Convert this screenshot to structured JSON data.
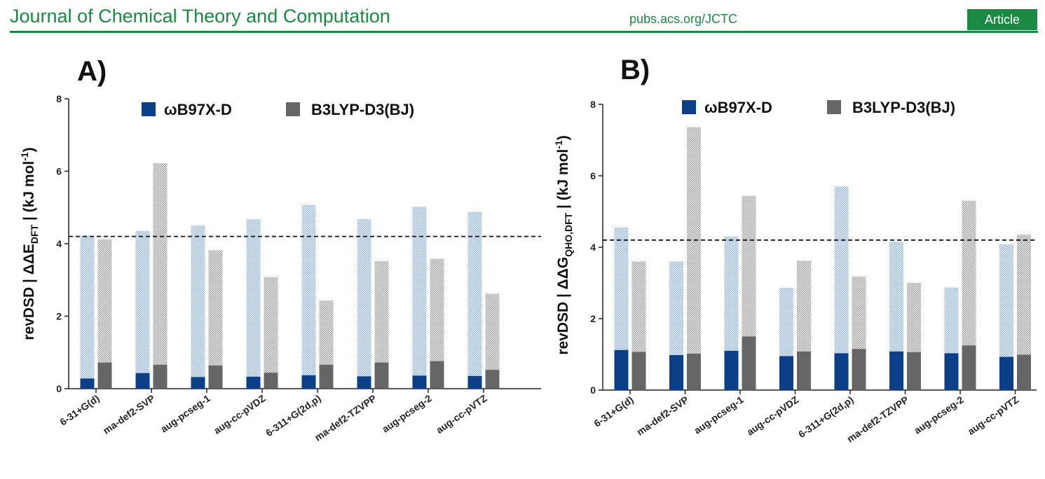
{
  "header": {
    "journal": "Journal of Chemical Theory and Computation",
    "url": "pubs.acs.org/JCTC",
    "badge": "Article"
  },
  "colors": {
    "brand_green": "#1a8a43",
    "wb97xd": "#0b3f87",
    "wb97xd_light": "#a8c3e2",
    "b3lyp": "#666666",
    "b3lyp_light": "#c9c9c9"
  },
  "chart_data": [
    {
      "type": "bar",
      "panel_label": "A)",
      "ylabel": "revDSD |ΔΔE_DFT| (kJ mol^-1)",
      "ylabel_parts": {
        "pre": "revDSD ",
        "delta": "ΔΔE",
        "sub": "DFT",
        "unit": " (kJ mol",
        "sup": "-1",
        "close": ")"
      },
      "ylim": [
        0,
        8
      ],
      "yticks": [
        "0",
        "2",
        "4",
        "6",
        "8"
      ],
      "reference_line": 4.2,
      "categories": [
        "6-31+G(d)",
        "ma-def2-SVP",
        "aug-pcseg-1",
        "aug-cc-pVDZ",
        "6-311+G(2d,p)",
        "ma-def2-TZVPP",
        "aug-pcseg-2",
        "aug-cc-pVTZ"
      ],
      "series": [
        {
          "name": "ωB97X-D",
          "solid": [
            0.28,
            0.43,
            0.32,
            0.33,
            0.37,
            0.34,
            0.36,
            0.35
          ],
          "max": [
            4.22,
            4.35,
            4.5,
            4.68,
            5.07,
            4.68,
            5.02,
            4.88
          ]
        },
        {
          "name": "B3LYP-D3(BJ)",
          "solid": [
            0.72,
            0.66,
            0.64,
            0.44,
            0.66,
            0.72,
            0.76,
            0.52
          ],
          "max": [
            4.12,
            6.22,
            3.82,
            3.08,
            2.43,
            3.52,
            3.58,
            2.62
          ]
        }
      ]
    },
    {
      "type": "bar",
      "panel_label": "B)",
      "ylabel": "revDSD |ΔΔG_QHO,DFT| (kJ mol^-1)",
      "ylabel_parts": {
        "pre": "revDSD ",
        "delta": "ΔΔG",
        "sub": "QHO,DFT",
        "unit": " (kJ mol",
        "sup": "-1",
        "close": ")"
      },
      "ylim": [
        0,
        8
      ],
      "yticks": [
        "0",
        "2",
        "4",
        "6",
        "8"
      ],
      "reference_line": 4.2,
      "categories": [
        "6-31+G(d)",
        "ma-def2-SVP",
        "aug-pcseg-1",
        "aug-cc-pVDZ",
        "6-311+G(2d,p)",
        "ma-def2-TZVPP",
        "aug-pcseg-2",
        "aug-cc-pVTZ"
      ],
      "series": [
        {
          "name": "ωB97X-D",
          "solid": [
            1.12,
            0.98,
            1.1,
            0.95,
            1.03,
            1.08,
            1.03,
            0.93
          ],
          "max": [
            4.55,
            3.6,
            4.3,
            2.86,
            5.7,
            4.15,
            2.87,
            4.08
          ]
        },
        {
          "name": "B3LYP-D3(BJ)",
          "solid": [
            1.07,
            1.02,
            1.5,
            1.08,
            1.15,
            1.06,
            1.25,
            0.99
          ],
          "max": [
            3.6,
            7.36,
            5.44,
            3.62,
            3.18,
            3.0,
            5.3,
            4.35
          ]
        }
      ]
    }
  ]
}
